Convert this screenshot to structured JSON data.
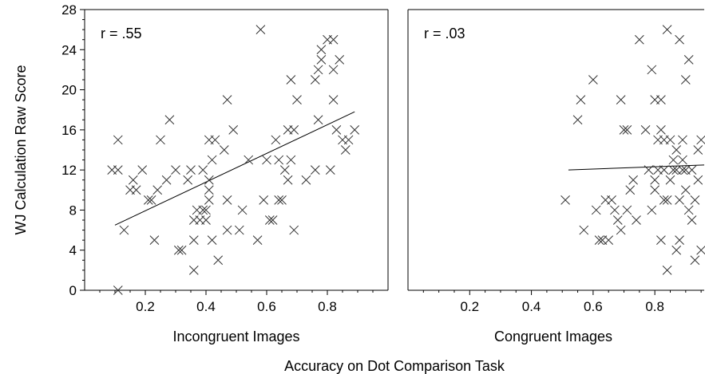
{
  "chart_data": {
    "type": "scatter",
    "ylabel": "WJ Calculation Raw Score",
    "xlabel_shared": "Accuracy on Dot Comparison Task",
    "ylim": [
      0,
      28
    ],
    "yticks": [
      0,
      4,
      8,
      12,
      16,
      20,
      24,
      28
    ],
    "panels": [
      {
        "name": "Incongruent Images",
        "r_label": "r = .55",
        "xlim": [
          0,
          1
        ],
        "xticks": [
          0.2,
          0.4,
          0.6,
          0.8
        ],
        "fit_line": {
          "x": [
            0.1,
            0.89
          ],
          "y": [
            6.5,
            17.8
          ]
        },
        "points": [
          [
            0.11,
            0
          ],
          [
            0.13,
            6
          ],
          [
            0.09,
            12
          ],
          [
            0.11,
            12
          ],
          [
            0.11,
            15
          ],
          [
            0.15,
            10
          ],
          [
            0.16,
            11
          ],
          [
            0.17,
            10
          ],
          [
            0.19,
            12
          ],
          [
            0.21,
            9
          ],
          [
            0.22,
            9
          ],
          [
            0.23,
            5
          ],
          [
            0.24,
            10
          ],
          [
            0.25,
            15
          ],
          [
            0.27,
            11
          ],
          [
            0.28,
            17
          ],
          [
            0.3,
            12
          ],
          [
            0.31,
            4
          ],
          [
            0.32,
            4
          ],
          [
            0.34,
            11
          ],
          [
            0.35,
            12
          ],
          [
            0.36,
            2
          ],
          [
            0.36,
            5
          ],
          [
            0.36,
            7
          ],
          [
            0.37,
            8
          ],
          [
            0.38,
            7
          ],
          [
            0.39,
            8
          ],
          [
            0.39,
            12
          ],
          [
            0.4,
            7
          ],
          [
            0.4,
            8
          ],
          [
            0.41,
            9
          ],
          [
            0.41,
            10
          ],
          [
            0.41,
            11
          ],
          [
            0.41,
            15
          ],
          [
            0.42,
            5
          ],
          [
            0.42,
            13
          ],
          [
            0.43,
            15
          ],
          [
            0.44,
            3
          ],
          [
            0.46,
            14
          ],
          [
            0.47,
            6
          ],
          [
            0.47,
            9
          ],
          [
            0.47,
            19
          ],
          [
            0.49,
            16
          ],
          [
            0.51,
            6
          ],
          [
            0.52,
            8
          ],
          [
            0.54,
            13
          ],
          [
            0.57,
            5
          ],
          [
            0.58,
            26
          ],
          [
            0.59,
            9
          ],
          [
            0.6,
            13
          ],
          [
            0.61,
            7
          ],
          [
            0.62,
            7
          ],
          [
            0.63,
            15
          ],
          [
            0.64,
            9
          ],
          [
            0.64,
            13
          ],
          [
            0.65,
            9
          ],
          [
            0.66,
            12
          ],
          [
            0.67,
            11
          ],
          [
            0.67,
            16
          ],
          [
            0.68,
            13
          ],
          [
            0.68,
            21
          ],
          [
            0.69,
            6
          ],
          [
            0.69,
            16
          ],
          [
            0.7,
            19
          ],
          [
            0.73,
            11
          ],
          [
            0.76,
            12
          ],
          [
            0.76,
            21
          ],
          [
            0.77,
            17
          ],
          [
            0.77,
            22
          ],
          [
            0.78,
            23
          ],
          [
            0.78,
            24
          ],
          [
            0.8,
            25
          ],
          [
            0.81,
            12
          ],
          [
            0.82,
            25
          ],
          [
            0.82,
            19
          ],
          [
            0.82,
            22
          ],
          [
            0.83,
            16
          ],
          [
            0.84,
            23
          ],
          [
            0.85,
            15
          ],
          [
            0.86,
            14
          ],
          [
            0.87,
            15
          ],
          [
            0.89,
            16
          ]
        ]
      },
      {
        "name": "Congruent Images",
        "r_label": "r = .03",
        "xlim": [
          0,
          0.96
        ],
        "xticks": [
          0.2,
          0.4,
          0.6,
          0.8
        ],
        "fit_line": {
          "x": [
            0.52,
            0.96
          ],
          "y": [
            12.0,
            12.5
          ]
        },
        "points": [
          [
            0.51,
            9
          ],
          [
            0.55,
            17
          ],
          [
            0.56,
            19
          ],
          [
            0.57,
            6
          ],
          [
            0.6,
            21
          ],
          [
            0.61,
            8
          ],
          [
            0.62,
            5
          ],
          [
            0.63,
            5
          ],
          [
            0.64,
            9
          ],
          [
            0.65,
            5
          ],
          [
            0.66,
            9
          ],
          [
            0.67,
            8
          ],
          [
            0.68,
            7
          ],
          [
            0.69,
            6
          ],
          [
            0.69,
            19
          ],
          [
            0.7,
            16
          ],
          [
            0.71,
            16
          ],
          [
            0.71,
            8
          ],
          [
            0.72,
            10
          ],
          [
            0.73,
            11
          ],
          [
            0.74,
            7
          ],
          [
            0.75,
            25
          ],
          [
            0.77,
            16
          ],
          [
            0.78,
            12
          ],
          [
            0.79,
            8
          ],
          [
            0.79,
            22
          ],
          [
            0.8,
            10
          ],
          [
            0.8,
            11
          ],
          [
            0.8,
            19
          ],
          [
            0.81,
            15
          ],
          [
            0.81,
            12
          ],
          [
            0.82,
            19
          ],
          [
            0.82,
            5
          ],
          [
            0.82,
            16
          ],
          [
            0.83,
            9
          ],
          [
            0.83,
            12
          ],
          [
            0.83,
            15
          ],
          [
            0.84,
            2
          ],
          [
            0.84,
            26
          ],
          [
            0.84,
            9
          ],
          [
            0.85,
            11
          ],
          [
            0.85,
            15
          ],
          [
            0.86,
            13
          ],
          [
            0.86,
            12
          ],
          [
            0.87,
            12
          ],
          [
            0.87,
            4
          ],
          [
            0.87,
            14
          ],
          [
            0.88,
            5
          ],
          [
            0.88,
            25
          ],
          [
            0.88,
            9
          ],
          [
            0.89,
            12
          ],
          [
            0.89,
            13
          ],
          [
            0.89,
            15
          ],
          [
            0.9,
            10
          ],
          [
            0.9,
            12
          ],
          [
            0.9,
            21
          ],
          [
            0.91,
            8
          ],
          [
            0.91,
            23
          ],
          [
            0.92,
            7
          ],
          [
            0.92,
            12
          ],
          [
            0.93,
            3
          ],
          [
            0.93,
            9
          ],
          [
            0.94,
            11
          ],
          [
            0.94,
            14
          ],
          [
            0.95,
            4
          ],
          [
            0.95,
            15
          ],
          [
            0.96,
            6
          ],
          [
            0.96,
            10
          ],
          [
            0.96,
            17
          ],
          [
            0.96,
            24
          ]
        ]
      }
    ]
  }
}
